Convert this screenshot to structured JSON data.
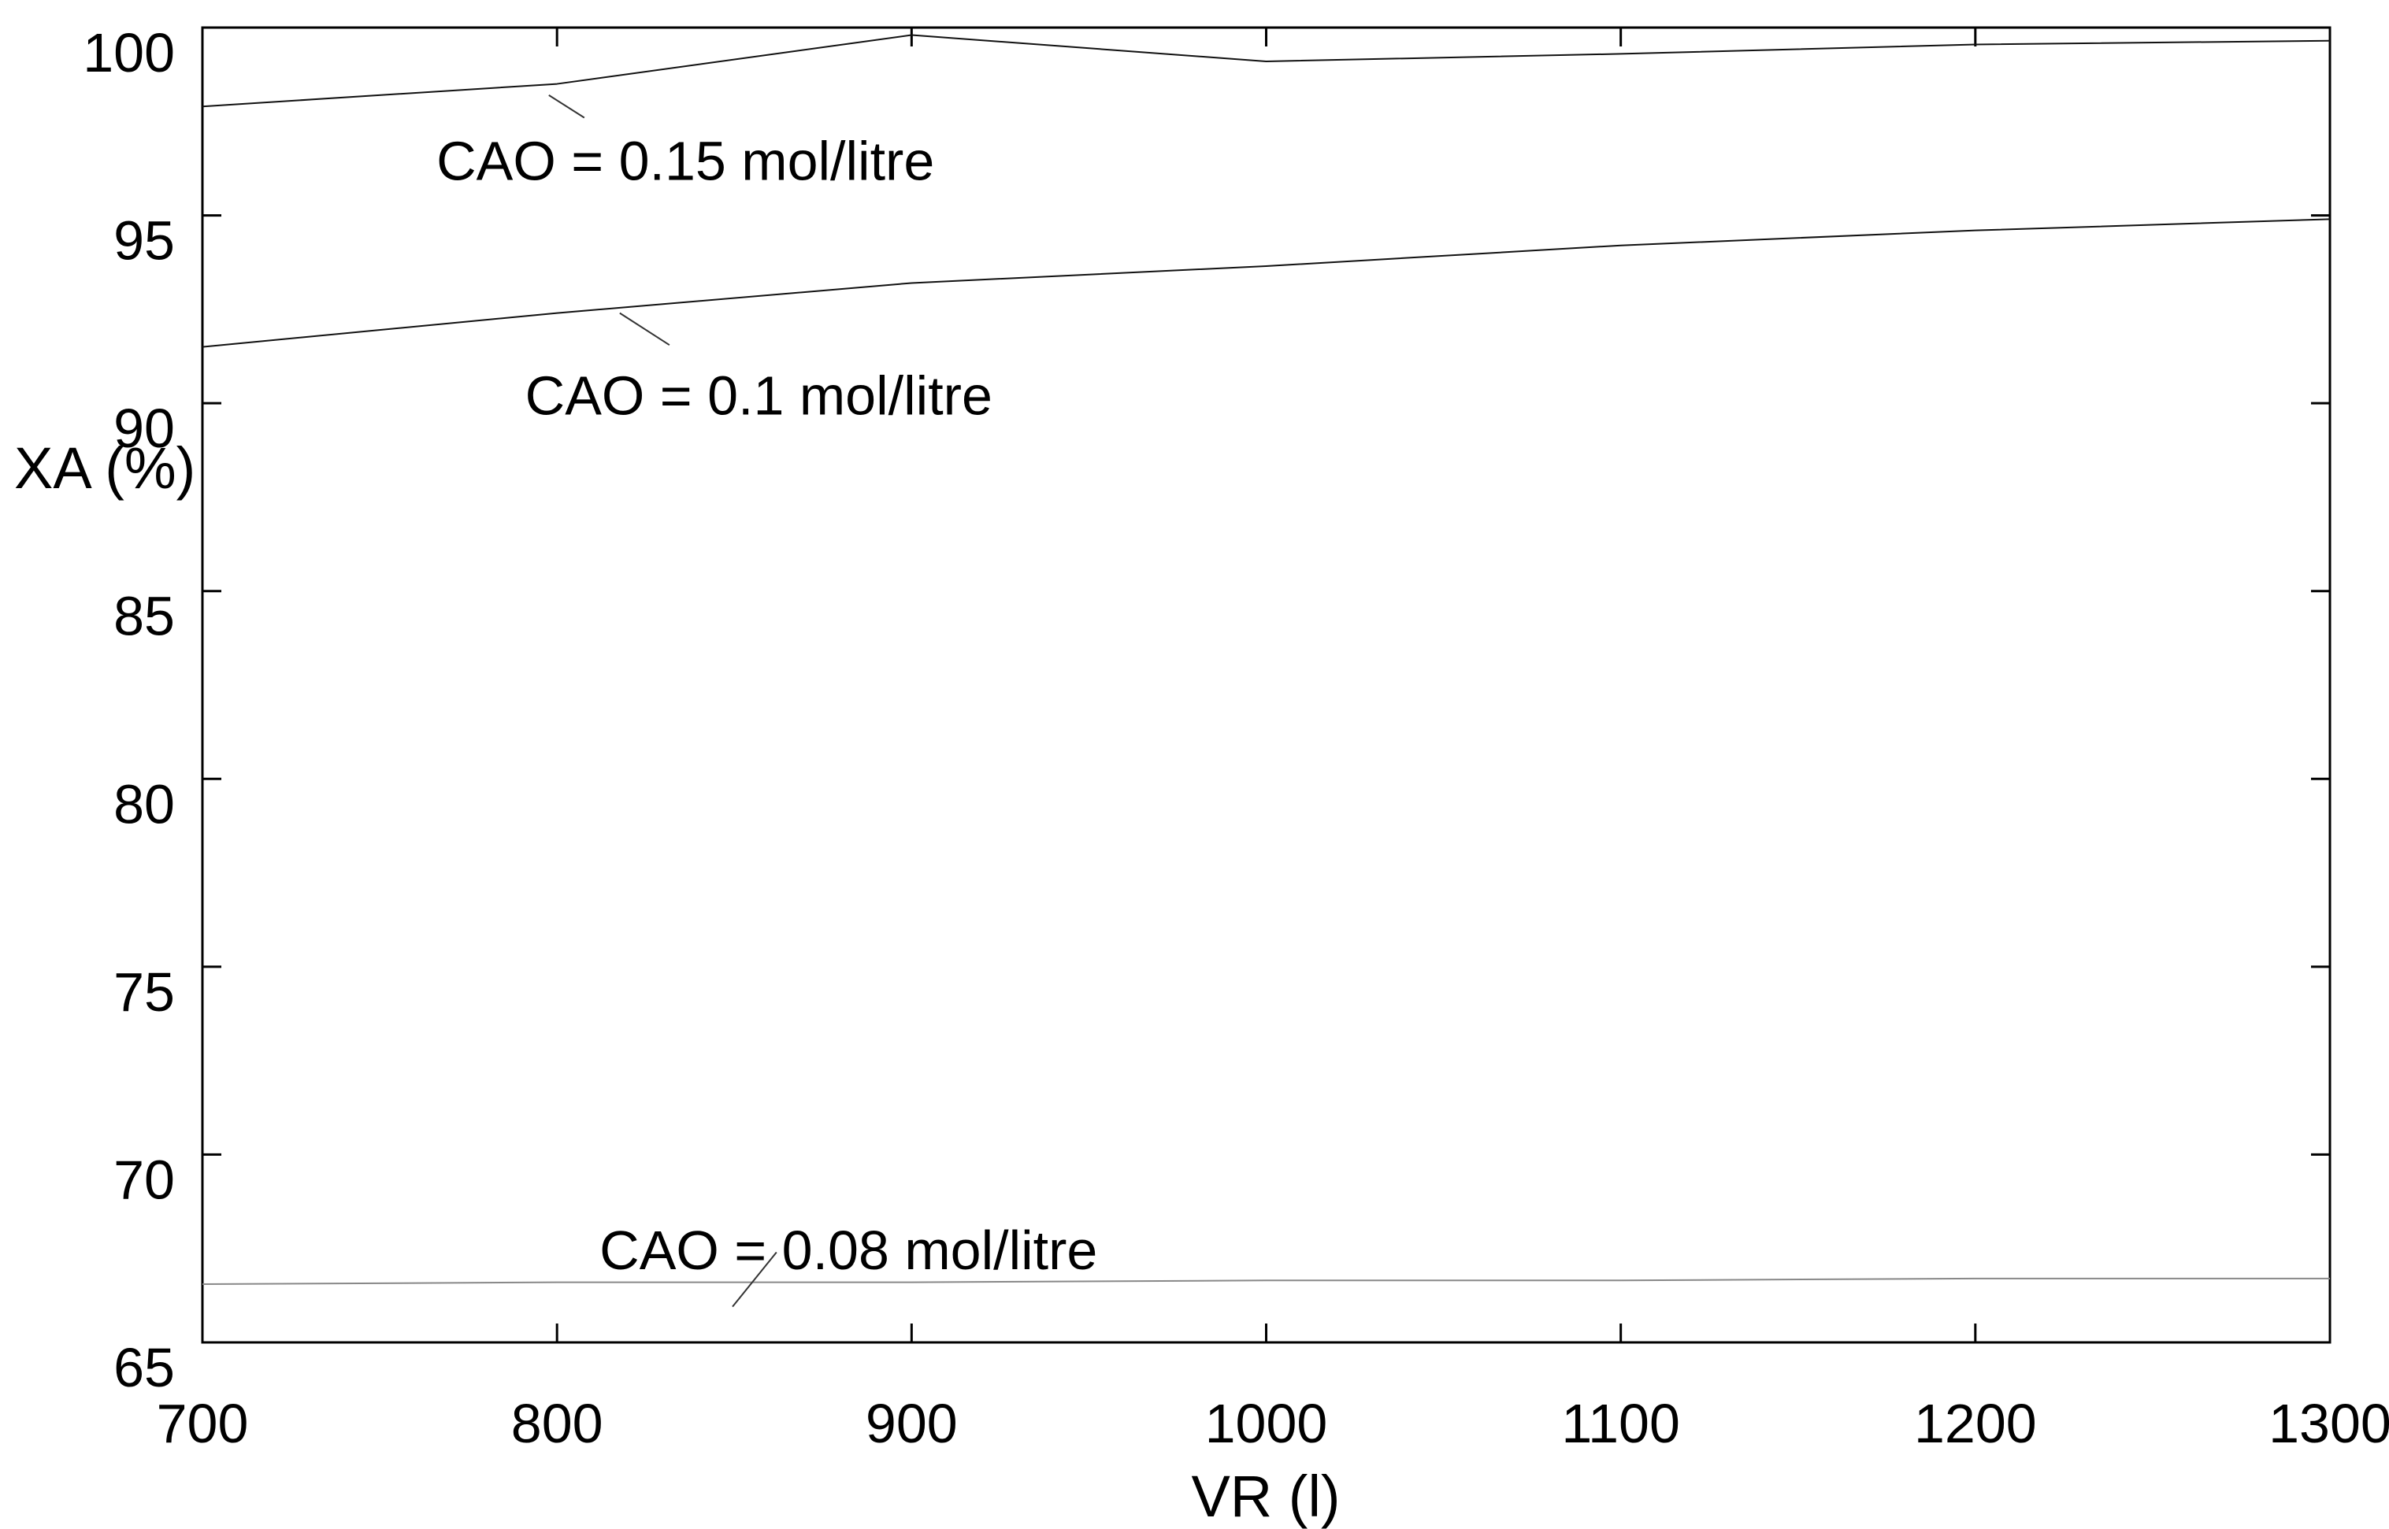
{
  "chart_data": {
    "type": "line",
    "title": "",
    "xlabel": "VR (l)",
    "ylabel": "XA (%)",
    "xlim": [
      700,
      1300
    ],
    "ylim": [
      65,
      100
    ],
    "xticks": [
      700,
      800,
      900,
      1000,
      1100,
      1200,
      1300
    ],
    "yticks": [
      65,
      70,
      75,
      80,
      85,
      90,
      95,
      100
    ],
    "grid": false,
    "legend_position": "none-inline-annotations",
    "background": "#ffffff",
    "axis_color": "#000000",
    "x": [
      700,
      800,
      900,
      1000,
      1100,
      1200,
      1300
    ],
    "series": [
      {
        "name": "CAO = 0.15 mol/litre",
        "color": "#111111",
        "width": 2,
        "values": [
          97.9,
          98.5,
          99.8,
          99.1,
          99.3,
          99.55,
          99.65
        ]
      },
      {
        "name": "CAO = 0.1 mol/litre",
        "color": "#111111",
        "width": 2,
        "values": [
          91.5,
          92.4,
          93.2,
          93.65,
          94.2,
          94.6,
          94.9
        ]
      },
      {
        "name": "CAO = 0.08 mol/litre",
        "color": "#888888",
        "width": 2,
        "values": [
          66.55,
          66.6,
          66.6,
          66.65,
          66.65,
          66.7,
          66.7
        ]
      }
    ],
    "annotations": [
      {
        "text": "CAO = 0.15 mol/litre",
        "x": 766,
        "y": 97.05,
        "leader": [
          [
            797.7,
            98.2
          ],
          [
            807.7,
            97.6
          ]
        ]
      },
      {
        "text": "CAO = 0.1 mol/litre",
        "x": 791,
        "y": 90.8,
        "leader": [
          [
            817.7,
            92.4
          ],
          [
            831.7,
            91.55
          ]
        ]
      },
      {
        "text": "CAO = 0.08 mol/litre",
        "x": 812,
        "y": 68.05,
        "leader": [
          [
            861.9,
            67.4
          ],
          [
            849.5,
            65.95
          ]
        ]
      }
    ]
  }
}
